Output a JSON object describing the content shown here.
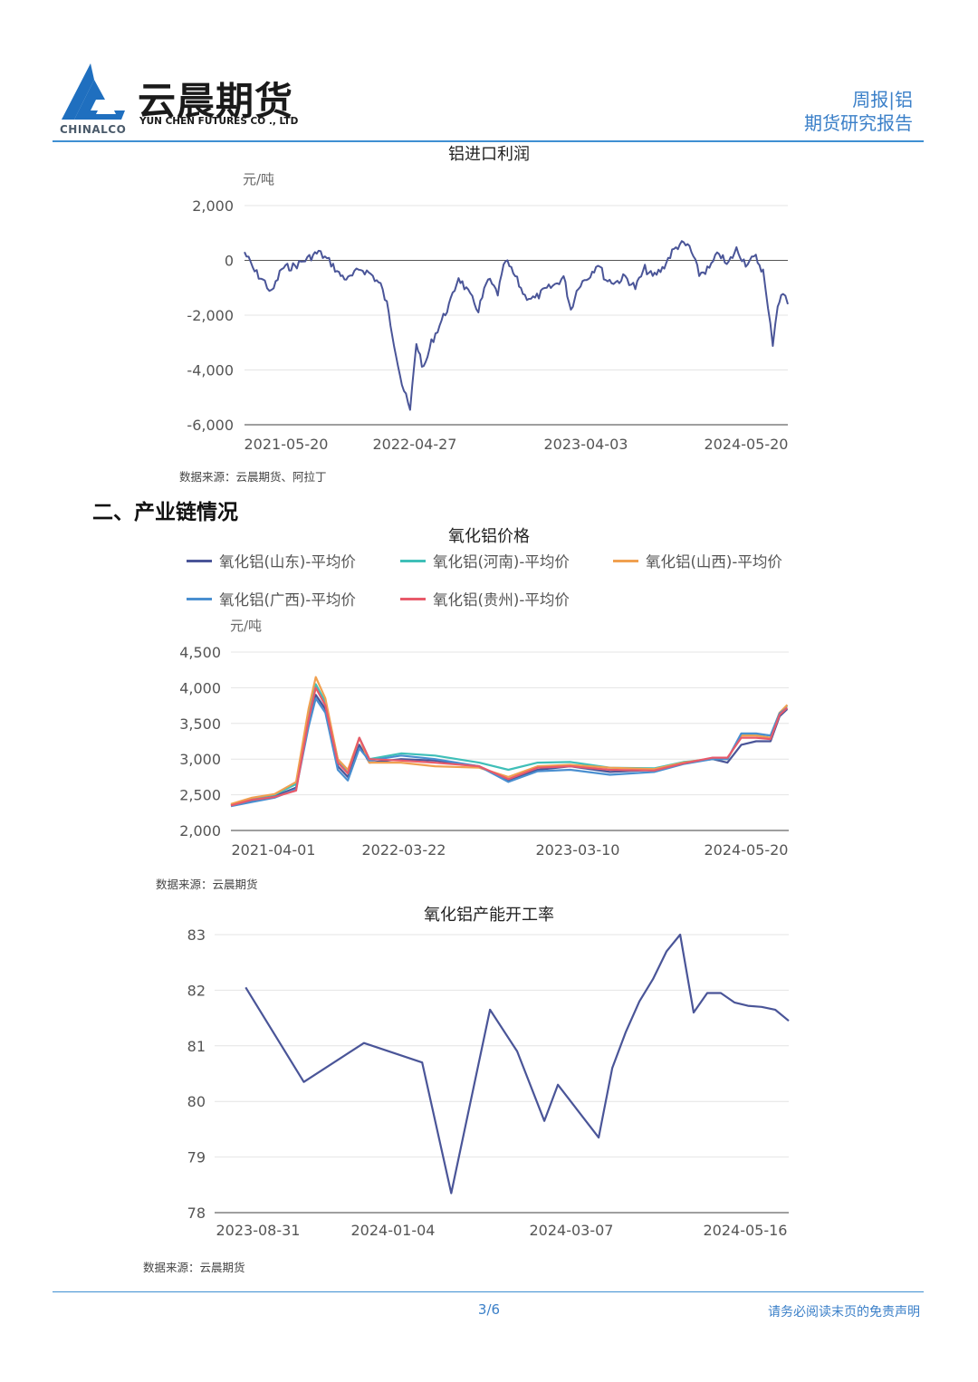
{
  "header": {
    "company_cn": "云晨期货",
    "company_en": "YUN CHEN FUTURES CO ., LTD",
    "parent_brand": "CHINALCO",
    "report_line1": "周报|铝",
    "report_line2": "期货研究报告",
    "accent_color": "#3f8fd2"
  },
  "section_title": "二、产业链情况",
  "charts": [
    {
      "id": "import-profit",
      "title": "铝进口利润",
      "source": "数据来源：云晨期货、阿拉丁"
    },
    {
      "id": "alumina-price",
      "title": "氧化铝价格",
      "source": "数据来源：云晨期货"
    },
    {
      "id": "alumina-utilization",
      "title": "氧化铝产能开工率",
      "source": "数据来源：云晨期货"
    }
  ],
  "chart_data": [
    {
      "type": "line",
      "title": "铝进口利润",
      "ylabel": "元/吨",
      "ylim": [
        -6000,
        2000
      ],
      "yticks": [
        "2,000",
        "0",
        "-2,000",
        "-4,000",
        "-6,000"
      ],
      "xticks": [
        "2021-05-20",
        "2022-04-27",
        "2023-04-03",
        "2024-05-20"
      ],
      "grid": true,
      "series": [
        {
          "color": "#4a5598",
          "points": [
            [
              "2021-05-20",
              300
            ],
            [
              "2021-06-10",
              -400
            ],
            [
              "2021-07-01",
              -800
            ],
            [
              "2021-07-15",
              -1200
            ],
            [
              "2021-08-05",
              -300
            ],
            [
              "2021-09-01",
              -200
            ],
            [
              "2021-10-01",
              100
            ],
            [
              "2021-10-20",
              300
            ],
            [
              "2021-11-15",
              -100
            ],
            [
              "2021-12-01",
              -500
            ],
            [
              "2021-12-20",
              -700
            ],
            [
              "2022-01-15",
              -300
            ],
            [
              "2022-02-05",
              -500
            ],
            [
              "2022-02-25",
              -900
            ],
            [
              "2022-03-10",
              -1600
            ],
            [
              "2022-03-25",
              -3000
            ],
            [
              "2022-04-10",
              -4500
            ],
            [
              "2022-04-27",
              -5500
            ],
            [
              "2022-05-10",
              -3000
            ],
            [
              "2022-05-25",
              -4000
            ],
            [
              "2022-06-10",
              -3000
            ],
            [
              "2022-07-01",
              -2200
            ],
            [
              "2022-07-20",
              -1500
            ],
            [
              "2022-08-05",
              -600
            ],
            [
              "2022-08-25",
              -1200
            ],
            [
              "2022-09-15",
              -1800
            ],
            [
              "2022-10-05",
              -700
            ],
            [
              "2022-10-25",
              -1200
            ],
            [
              "2022-11-10",
              0
            ],
            [
              "2022-11-30",
              -600
            ],
            [
              "2022-12-20",
              -1300
            ],
            [
              "2023-01-10",
              -1400
            ],
            [
              "2023-01-30",
              -1100
            ],
            [
              "2023-02-20",
              -900
            ],
            [
              "2023-03-10",
              -600
            ],
            [
              "2023-03-25",
              -1800
            ],
            [
              "2023-04-10",
              -900
            ],
            [
              "2023-04-30",
              -600
            ],
            [
              "2023-05-20",
              -100
            ],
            [
              "2023-06-05",
              -700
            ],
            [
              "2023-06-25",
              -800
            ],
            [
              "2023-07-15",
              -600
            ],
            [
              "2023-08-05",
              -1000
            ],
            [
              "2023-08-25",
              -300
            ],
            [
              "2023-09-10",
              -600
            ],
            [
              "2023-09-30",
              -300
            ],
            [
              "2023-10-20",
              300
            ],
            [
              "2023-11-05",
              600
            ],
            [
              "2023-11-25",
              500
            ],
            [
              "2023-12-15",
              -500
            ],
            [
              "2024-01-05",
              -300
            ],
            [
              "2024-01-25",
              300
            ],
            [
              "2024-02-10",
              -200
            ],
            [
              "2024-03-01",
              400
            ],
            [
              "2024-03-20",
              -100
            ],
            [
              "2024-04-10",
              100
            ],
            [
              "2024-04-25",
              -400
            ],
            [
              "2024-05-05",
              -1800
            ],
            [
              "2024-05-15",
              -3000
            ],
            [
              "2024-05-25",
              -1600
            ],
            [
              "2024-06-05",
              -1200
            ],
            [
              "2024-06-15",
              -1600
            ]
          ]
        }
      ]
    },
    {
      "type": "line",
      "title": "氧化铝价格",
      "ylabel": "元/吨",
      "ylim": [
        2000,
        4500
      ],
      "yticks": [
        "4,500",
        "4,000",
        "3,500",
        "3,000",
        "2,500",
        "2,000"
      ],
      "xticks": [
        "2021-04-01",
        "2022-03-22",
        "2023-03-10",
        "2024-05-20"
      ],
      "grid": true,
      "legend_position": "top",
      "series": [
        {
          "name": "氧化铝(山东)-平均价",
          "color": "#4a5598",
          "points": [
            [
              "2021-04-01",
              2350
            ],
            [
              "2021-05-15",
              2420
            ],
            [
              "2021-07-01",
              2480
            ],
            [
              "2021-08-15",
              2600
            ],
            [
              "2021-09-10",
              3500
            ],
            [
              "2021-09-25",
              3900
            ],
            [
              "2021-10-15",
              3700
            ],
            [
              "2021-11-10",
              2900
            ],
            [
              "2021-12-01",
              2750
            ],
            [
              "2021-12-25",
              3200
            ],
            [
              "2022-01-15",
              2950
            ],
            [
              "2022-03-22",
              3000
            ],
            [
              "2022-06-01",
              2980
            ],
            [
              "2022-09-01",
              2900
            ],
            [
              "2022-11-01",
              2700
            ],
            [
              "2023-01-01",
              2850
            ],
            [
              "2023-03-10",
              2900
            ],
            [
              "2023-06-01",
              2820
            ],
            [
              "2023-09-01",
              2850
            ],
            [
              "2023-11-01",
              2950
            ],
            [
              "2024-01-01",
              3000
            ],
            [
              "2024-02-01",
              2950
            ],
            [
              "2024-03-01",
              3200
            ],
            [
              "2024-04-01",
              3250
            ],
            [
              "2024-05-01",
              3250
            ],
            [
              "2024-05-20",
              3600
            ],
            [
              "2024-06-05",
              3700
            ]
          ]
        },
        {
          "name": "氧化铝(河南)-平均价",
          "color": "#3fbfb8",
          "points": [
            [
              "2021-04-01",
              2360
            ],
            [
              "2021-05-15",
              2450
            ],
            [
              "2021-07-01",
              2500
            ],
            [
              "2021-08-15",
              2650
            ],
            [
              "2021-09-10",
              3600
            ],
            [
              "2021-09-25",
              4050
            ],
            [
              "2021-10-15",
              3800
            ],
            [
              "2021-11-10",
              3000
            ],
            [
              "2021-12-01",
              2800
            ],
            [
              "2021-12-25",
              3300
            ],
            [
              "2022-01-15",
              3000
            ],
            [
              "2022-03-22",
              3080
            ],
            [
              "2022-06-01",
              3050
            ],
            [
              "2022-09-01",
              2950
            ],
            [
              "2022-11-01",
              2850
            ],
            [
              "2023-01-01",
              2950
            ],
            [
              "2023-03-10",
              2960
            ],
            [
              "2023-06-01",
              2880
            ],
            [
              "2023-09-01",
              2870
            ],
            [
              "2023-11-01",
              2960
            ],
            [
              "2024-01-01",
              3000
            ],
            [
              "2024-02-01",
              3000
            ],
            [
              "2024-03-01",
              3350
            ],
            [
              "2024-04-01",
              3350
            ],
            [
              "2024-05-01",
              3330
            ],
            [
              "2024-05-20",
              3650
            ],
            [
              "2024-06-05",
              3750
            ]
          ]
        },
        {
          "name": "氧化铝(山西)-平均价",
          "color": "#f0a050",
          "points": [
            [
              "2021-04-01",
              2370
            ],
            [
              "2021-05-15",
              2460
            ],
            [
              "2021-07-01",
              2510
            ],
            [
              "2021-08-15",
              2680
            ],
            [
              "2021-09-10",
              3700
            ],
            [
              "2021-09-25",
              4150
            ],
            [
              "2021-10-15",
              3850
            ],
            [
              "2021-11-10",
              3000
            ],
            [
              "2021-12-01",
              2850
            ],
            [
              "2021-12-25",
              3300
            ],
            [
              "2022-01-15",
              2950
            ],
            [
              "2022-03-22",
              2950
            ],
            [
              "2022-06-01",
              2900
            ],
            [
              "2022-09-01",
              2880
            ],
            [
              "2022-11-01",
              2750
            ],
            [
              "2023-01-01",
              2900
            ],
            [
              "2023-03-10",
              2920
            ],
            [
              "2023-06-01",
              2880
            ],
            [
              "2023-09-01",
              2860
            ],
            [
              "2023-11-01",
              2950
            ],
            [
              "2024-01-01",
              3010
            ],
            [
              "2024-02-01",
              3000
            ],
            [
              "2024-03-01",
              3330
            ],
            [
              "2024-04-01",
              3330
            ],
            [
              "2024-05-01",
              3300
            ],
            [
              "2024-05-20",
              3650
            ],
            [
              "2024-06-05",
              3760
            ]
          ]
        },
        {
          "name": "氧化铝(广西)-平均价",
          "color": "#4a8fd0",
          "points": [
            [
              "2021-04-01",
              2340
            ],
            [
              "2021-05-15",
              2400
            ],
            [
              "2021-07-01",
              2460
            ],
            [
              "2021-08-15",
              2580
            ],
            [
              "2021-09-10",
              3450
            ],
            [
              "2021-09-25",
              3850
            ],
            [
              "2021-10-15",
              3650
            ],
            [
              "2021-11-10",
              2850
            ],
            [
              "2021-12-01",
              2700
            ],
            [
              "2021-12-25",
              3150
            ],
            [
              "2022-01-15",
              2980
            ],
            [
              "2022-03-22",
              3050
            ],
            [
              "2022-06-01",
              3000
            ],
            [
              "2022-09-01",
              2900
            ],
            [
              "2022-11-01",
              2680
            ],
            [
              "2023-01-01",
              2830
            ],
            [
              "2023-03-10",
              2850
            ],
            [
              "2023-06-01",
              2780
            ],
            [
              "2023-09-01",
              2820
            ],
            [
              "2023-11-01",
              2930
            ],
            [
              "2024-01-01",
              3000
            ],
            [
              "2024-02-01",
              3000
            ],
            [
              "2024-03-01",
              3360
            ],
            [
              "2024-04-01",
              3360
            ],
            [
              "2024-05-01",
              3330
            ],
            [
              "2024-05-20",
              3640
            ],
            [
              "2024-06-05",
              3720
            ]
          ]
        },
        {
          "name": "氧化铝(贵州)-平均价",
          "color": "#e85a6a",
          "points": [
            [
              "2021-04-01",
              2350
            ],
            [
              "2021-05-15",
              2430
            ],
            [
              "2021-07-01",
              2470
            ],
            [
              "2021-08-15",
              2560
            ],
            [
              "2021-09-10",
              3550
            ],
            [
              "2021-09-25",
              4000
            ],
            [
              "2021-10-15",
              3750
            ],
            [
              "2021-11-10",
              2950
            ],
            [
              "2021-12-01",
              2800
            ],
            [
              "2021-12-25",
              3300
            ],
            [
              "2022-01-15",
              3000
            ],
            [
              "2022-03-22",
              2980
            ],
            [
              "2022-06-01",
              2950
            ],
            [
              "2022-09-01",
              2900
            ],
            [
              "2022-11-01",
              2720
            ],
            [
              "2023-01-01",
              2880
            ],
            [
              "2023-03-10",
              2900
            ],
            [
              "2023-06-01",
              2850
            ],
            [
              "2023-09-01",
              2840
            ],
            [
              "2023-11-01",
              2940
            ],
            [
              "2024-01-01",
              3020
            ],
            [
              "2024-02-01",
              3020
            ],
            [
              "2024-03-01",
              3300
            ],
            [
              "2024-04-01",
              3300
            ],
            [
              "2024-05-01",
              3280
            ],
            [
              "2024-05-20",
              3620
            ],
            [
              "2024-06-05",
              3720
            ]
          ]
        }
      ]
    },
    {
      "type": "line",
      "title": "氧化铝产能开工率",
      "ylim": [
        78,
        83
      ],
      "yticks": [
        "83",
        "82",
        "81",
        "80",
        "79",
        "78"
      ],
      "xticks": [
        "2023-08-31",
        "2024-01-04",
        "2024-03-07",
        "2024-05-16"
      ],
      "grid": true,
      "series": [
        {
          "color": "#4a5598",
          "x": [
            "2023-08-31",
            "2023-09-30",
            "2023-10-31",
            "2023-11-30",
            "2023-12-15",
            "2024-01-04",
            "2024-01-18",
            "2024-02-01",
            "2024-02-08",
            "2024-02-29",
            "2024-03-07",
            "2024-03-14",
            "2024-03-21",
            "2024-03-28",
            "2024-04-04",
            "2024-04-11",
            "2024-04-18",
            "2024-04-25",
            "2024-05-02",
            "2024-05-09",
            "2024-05-16",
            "2024-05-23",
            "2024-05-30",
            "2024-06-06"
          ],
          "values": [
            82.05,
            80.35,
            81.05,
            80.7,
            78.35,
            81.65,
            80.9,
            79.65,
            80.3,
            79.35,
            80.6,
            81.25,
            81.8,
            82.2,
            82.7,
            83.0,
            81.6,
            81.95,
            81.95,
            81.78,
            81.72,
            81.7,
            81.65,
            81.45
          ]
        }
      ]
    }
  ]
}
